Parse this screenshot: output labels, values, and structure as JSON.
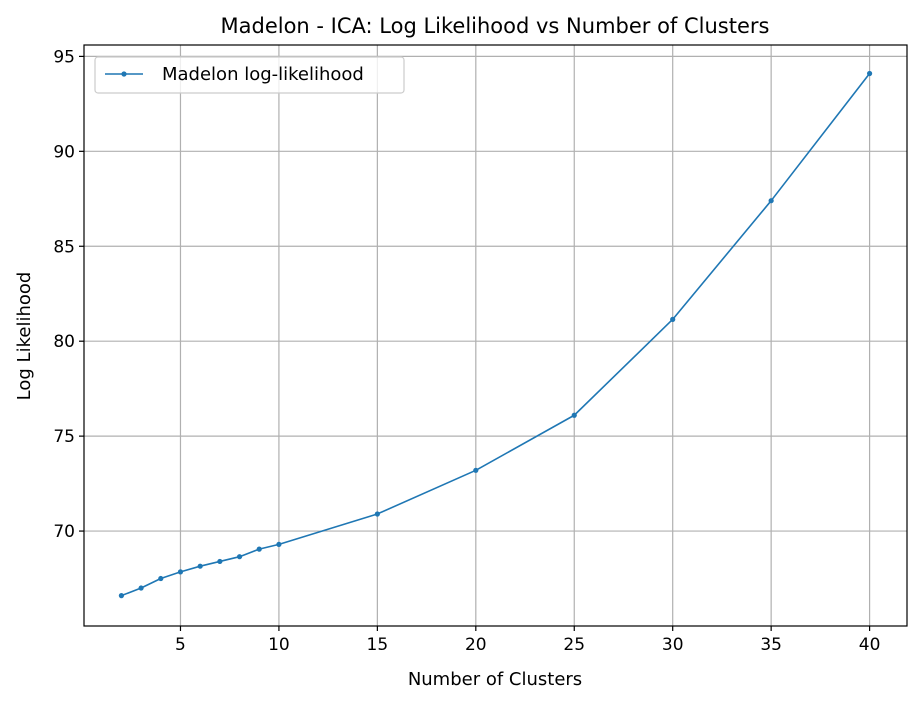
{
  "chart_data": {
    "type": "line",
    "title": "Madelon - ICA: Log Likelihood vs Number of Clusters",
    "xlabel": "Number of Clusters",
    "ylabel": "Log Likelihood",
    "xlim": [
      0.1,
      41.9
    ],
    "ylim": [
      65.0,
      95.6
    ],
    "xticks": [
      5,
      10,
      15,
      20,
      25,
      30,
      35,
      40
    ],
    "yticks": [
      70,
      75,
      80,
      85,
      90,
      95
    ],
    "grid": true,
    "legend_position": "top-left",
    "series": [
      {
        "name": "Madelon log-likelihood",
        "color": "#1f77b4",
        "marker": "circle",
        "x": [
          2,
          3,
          4,
          5,
          6,
          7,
          8,
          9,
          10,
          15,
          20,
          25,
          30,
          35,
          40
        ],
        "y": [
          66.6,
          67.0,
          67.5,
          67.85,
          68.15,
          68.4,
          68.65,
          69.05,
          69.3,
          70.9,
          73.2,
          76.1,
          81.15,
          87.4,
          94.1
        ]
      }
    ]
  }
}
